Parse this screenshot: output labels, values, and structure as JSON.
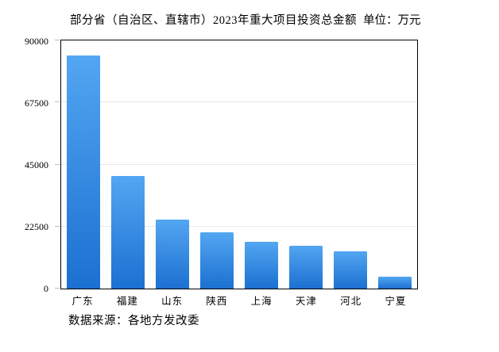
{
  "header": {
    "title": "部分省（自治区、直辖市）2023年重大项目投资总金额",
    "unit_label": "单位：万元"
  },
  "footer": {
    "source_note": "数据来源：各地方发改委"
  },
  "colors": {
    "bar_gradient_top": "#53A6F1",
    "bar_gradient_bottom": "#1C70D1",
    "axis_border": "#000000",
    "gridline": "#E8E8E8",
    "tick": "#BDBDBD",
    "background": "#FFFFFF",
    "text": "#000000"
  },
  "chart_data": {
    "type": "bar",
    "title": "部分省（自治区、直辖市）2023年重大项目投资总金额",
    "unit": "万元",
    "categories": [
      "广东",
      "福建",
      "山东",
      "陕西",
      "上海",
      "天津",
      "河北",
      "宁夏"
    ],
    "values": [
      84500,
      40800,
      25100,
      20500,
      17000,
      15500,
      13500,
      4200
    ],
    "xlabel": "",
    "ylabel": "",
    "ylim": [
      0,
      90000
    ],
    "yticks": [
      0,
      22500,
      45000,
      67500,
      90000
    ],
    "grid": true,
    "legend": false,
    "source": "数据来源：各地方发改委"
  }
}
